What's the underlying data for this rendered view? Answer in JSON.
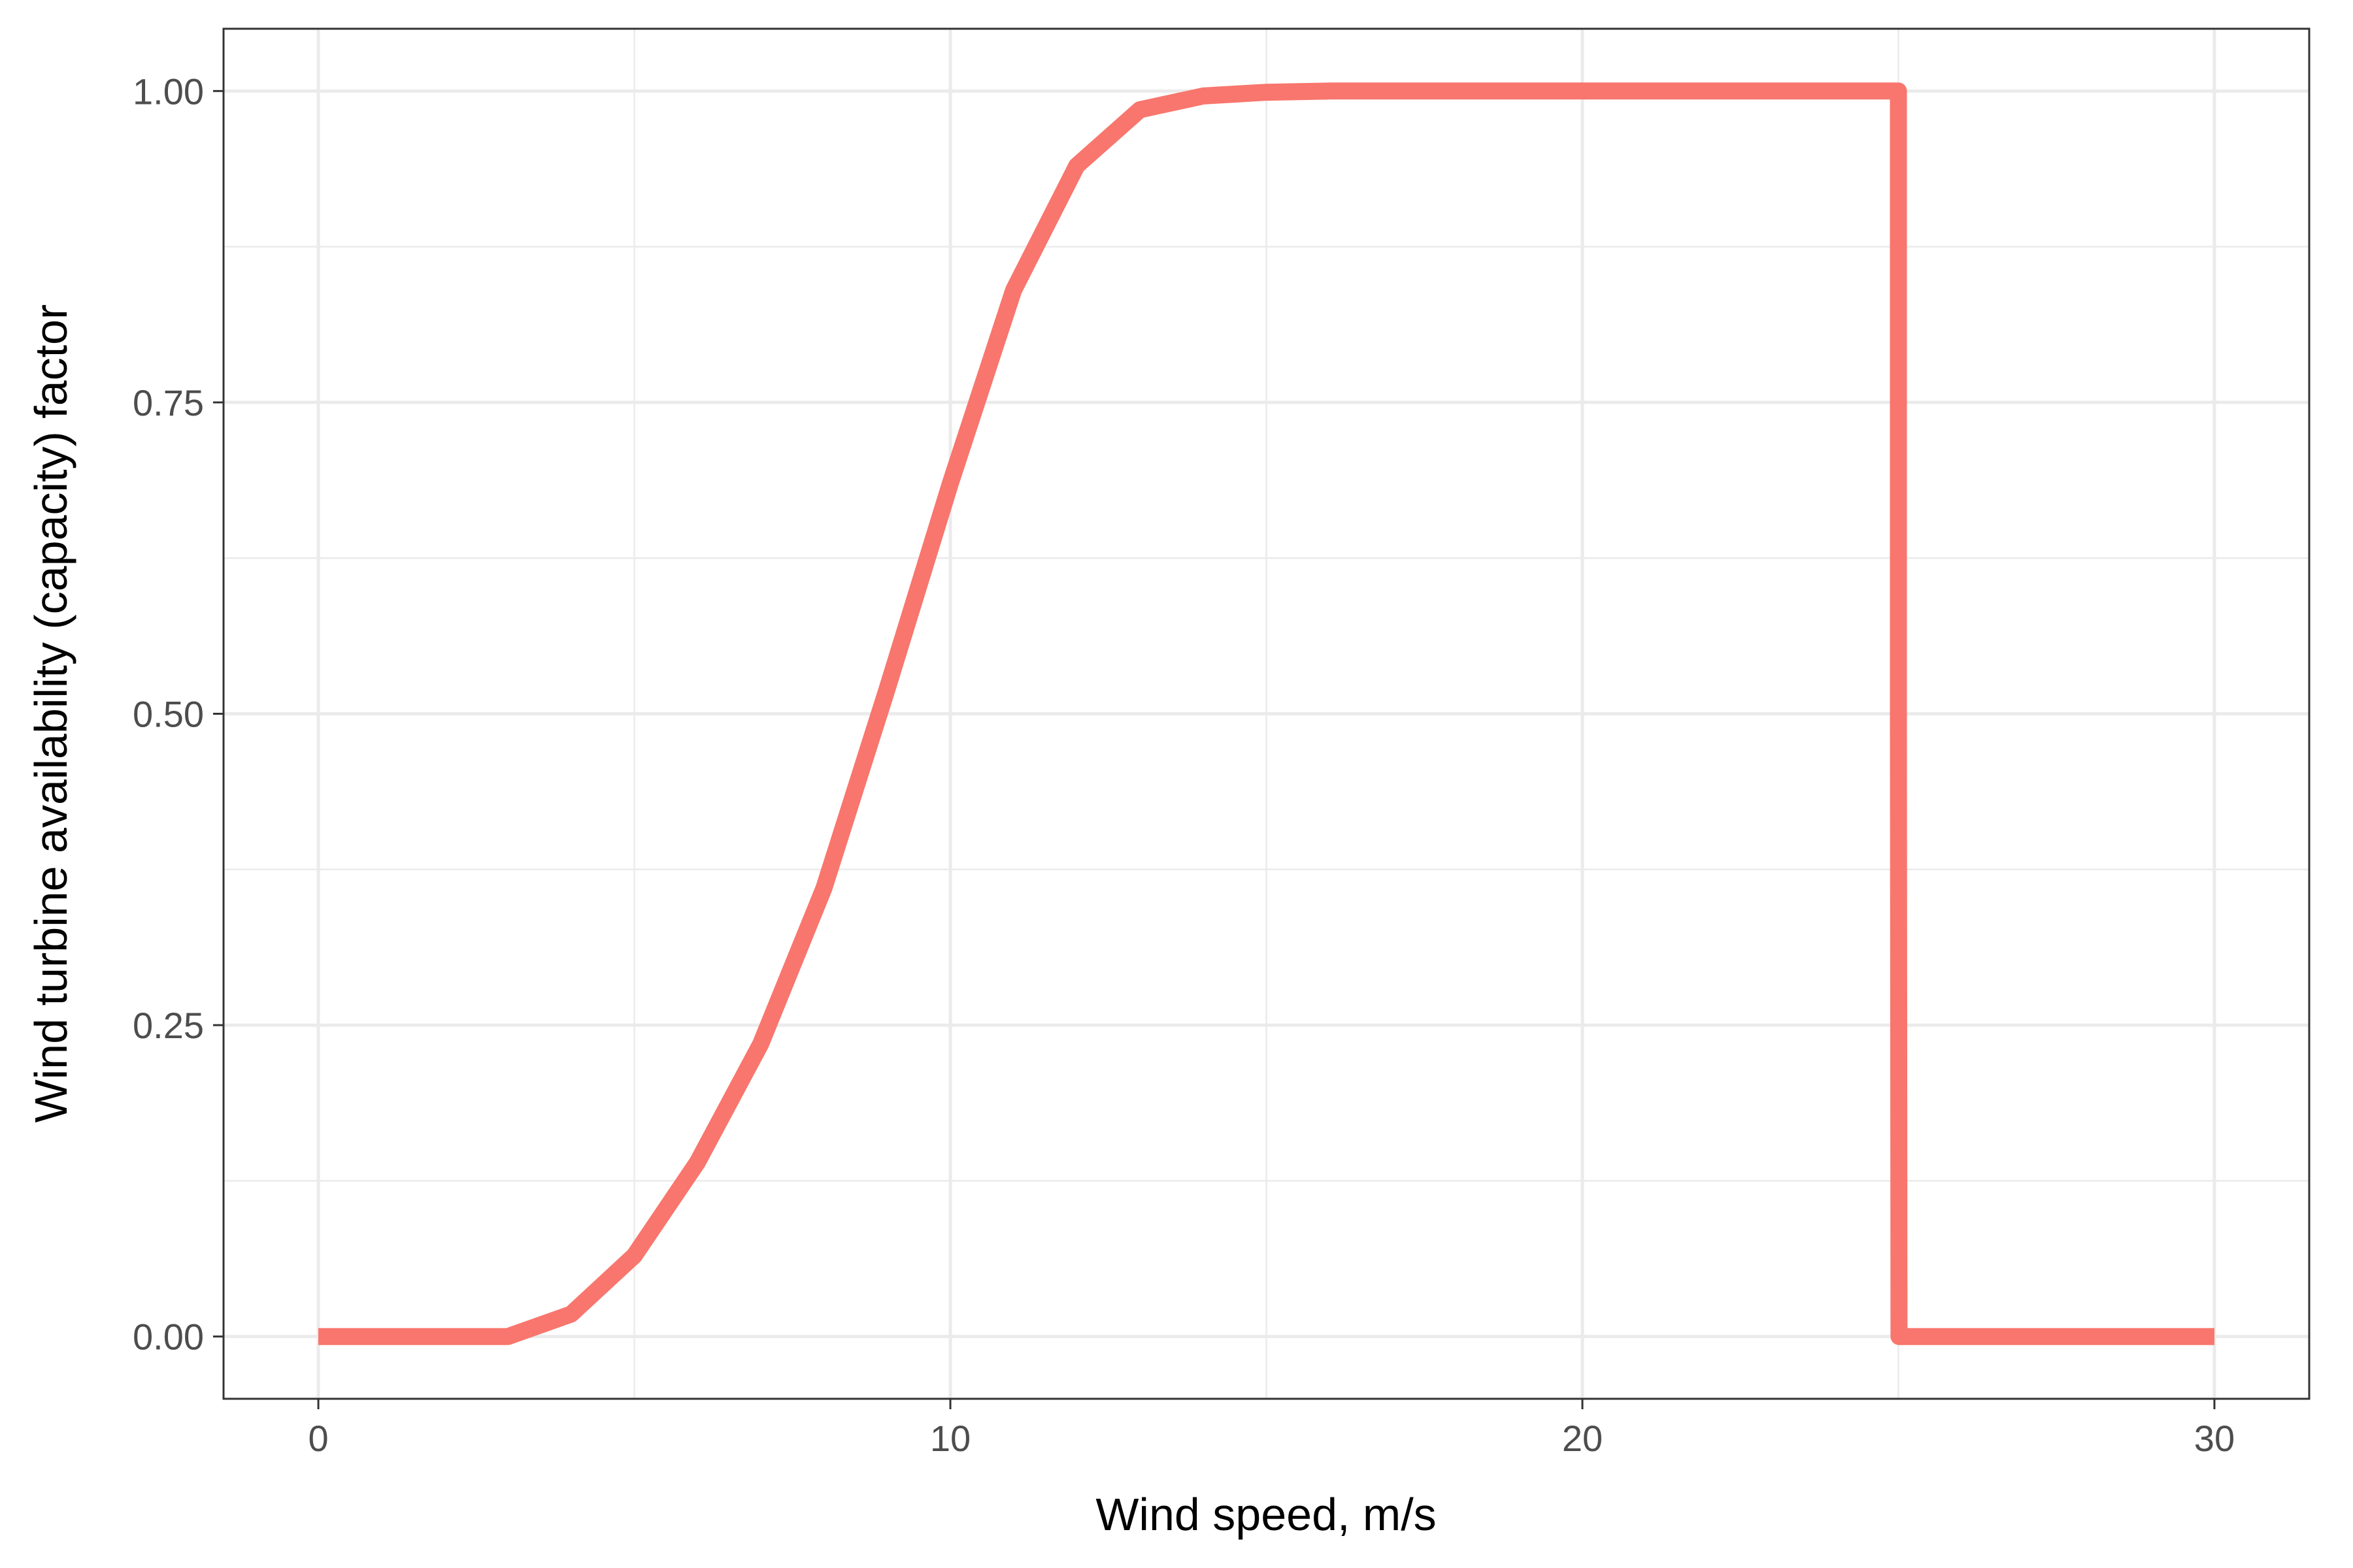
{
  "chart_data": {
    "type": "line",
    "title": "",
    "xlabel": "Wind speed, m/s",
    "ylabel": "Wind turbine availability (capacity) factor",
    "xlim": [
      -1.5,
      31.5
    ],
    "ylim": [
      -0.05,
      1.05
    ],
    "x_ticks": [
      0,
      10,
      20,
      30
    ],
    "x_tick_labels": [
      "0",
      "10",
      "20",
      "30"
    ],
    "x_minor_ticks": [
      5,
      15,
      25
    ],
    "y_ticks": [
      0,
      0.25,
      0.5,
      0.75,
      1.0
    ],
    "y_tick_labels": [
      "0.00",
      "0.25",
      "0.50",
      "0.75",
      "1.00"
    ],
    "y_minor_ticks": [
      0.125,
      0.375,
      0.625,
      0.875
    ],
    "grid": true,
    "legend": "none",
    "series": [
      {
        "color": "#F8766D",
        "x": [
          0,
          1,
          2,
          3,
          4,
          5,
          6,
          7,
          8,
          9,
          10,
          11,
          12,
          13,
          14,
          15,
          16,
          17,
          18,
          19,
          20,
          21,
          22,
          23,
          24,
          25,
          25,
          25.01,
          26,
          27,
          28,
          29,
          30
        ],
        "y": [
          0,
          0,
          0,
          0,
          0.018,
          0.065,
          0.14,
          0.235,
          0.36,
          0.52,
          0.685,
          0.84,
          0.94,
          0.985,
          0.996,
          0.999,
          1.0,
          1.0,
          1.0,
          1.0,
          1.0,
          1.0,
          1.0,
          1.0,
          1.0,
          1.0,
          0.5,
          0,
          0,
          0,
          0,
          0,
          0
        ]
      }
    ]
  }
}
